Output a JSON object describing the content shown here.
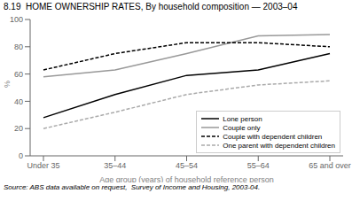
{
  "chart_data": {
    "type": "line",
    "title": "8.19  HOME OWNERSHIP RATES, By household composition — 2003–04",
    "xlabel": "Age group (years) of household reference person",
    "ylabel": "%",
    "annotations": [
      "Source: ABS data available on request,  Survey of Income and Housing, 2003-04."
    ],
    "categories": [
      "Under 35",
      "35–44",
      "45–54",
      "55–64",
      "65 and over"
    ],
    "series": [
      {
        "name": "Lone person",
        "color": "#000000",
        "line_style": "solid",
        "values": [
          28,
          45,
          59,
          63,
          75
        ]
      },
      {
        "name": "Couple only",
        "color": "#999999",
        "line_style": "solid",
        "values": [
          58,
          63,
          75,
          88,
          89
        ]
      },
      {
        "name": "Couple with dependent children",
        "color": "#000000",
        "line_style": "dashed",
        "values": [
          63,
          75,
          83,
          83,
          80
        ]
      },
      {
        "name": "One parent with dependent children",
        "color": "#aaaaaa",
        "line_style": "dashed",
        "values": [
          20,
          32,
          45,
          52,
          55
        ]
      }
    ],
    "ylim": [
      0,
      100
    ],
    "yticks": [
      0,
      20,
      40,
      60,
      80,
      100
    ],
    "grid": false,
    "legend": "lower right"
  }
}
